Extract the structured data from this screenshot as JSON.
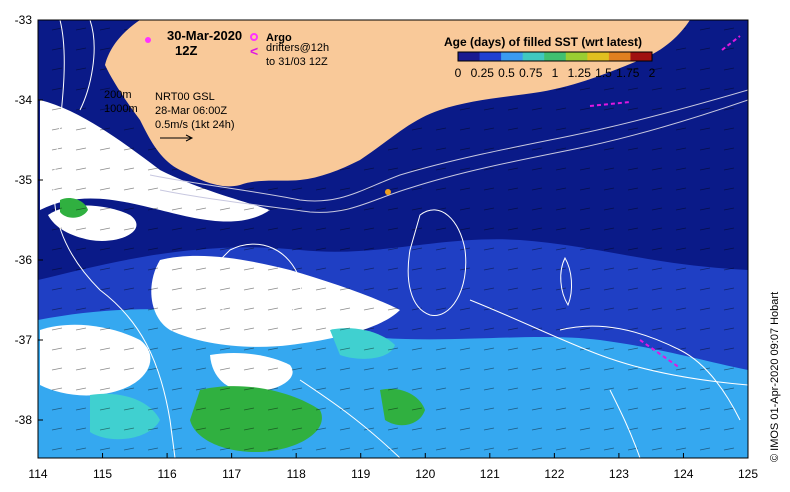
{
  "map": {
    "date": "30-Mar-2020",
    "time": "12Z",
    "argo_label": "Argo",
    "drifters_line1": "drifters@12h",
    "drifters_line2": "to 31/03 12Z",
    "bathy_200": "200m",
    "bathy_1000": "1000m",
    "nrt_label": "NRT00 GSL",
    "nrt_date": "28-Mar 06:00Z",
    "scale_label": "0.5m/s (1kt 24h)",
    "credit": "©  IMOS 01-Apr-2020 09:07 Hobart",
    "colors": {
      "land": "#f9c999",
      "ocean_deep": "#0a1a88",
      "ocean_mid": "#1f3fc4",
      "ocean_light": "#35a8f0",
      "cloud": "#ffffff",
      "argo": "#ff33ff",
      "drifter": "#e018e0"
    }
  },
  "axes": {
    "x_ticks": [
      "114",
      "115",
      "116",
      "117",
      "118",
      "119",
      "120",
      "121",
      "122",
      "123",
      "124",
      "125"
    ],
    "y_ticks": [
      "-33",
      "-34",
      "-35",
      "-36",
      "-37",
      "-38"
    ]
  },
  "colorbar": {
    "title": "Age (days) of filled SST (wrt latest)",
    "labels": [
      "0",
      "0.25",
      "0.5",
      "0.75",
      "1",
      "1.25",
      "1.5",
      "1.75",
      "2"
    ],
    "colors": [
      "#1a1a90",
      "#2040d0",
      "#3a9af0",
      "#40c8c0",
      "#40c070",
      "#9acd32",
      "#e0c020",
      "#e08020",
      "#a01010"
    ]
  }
}
